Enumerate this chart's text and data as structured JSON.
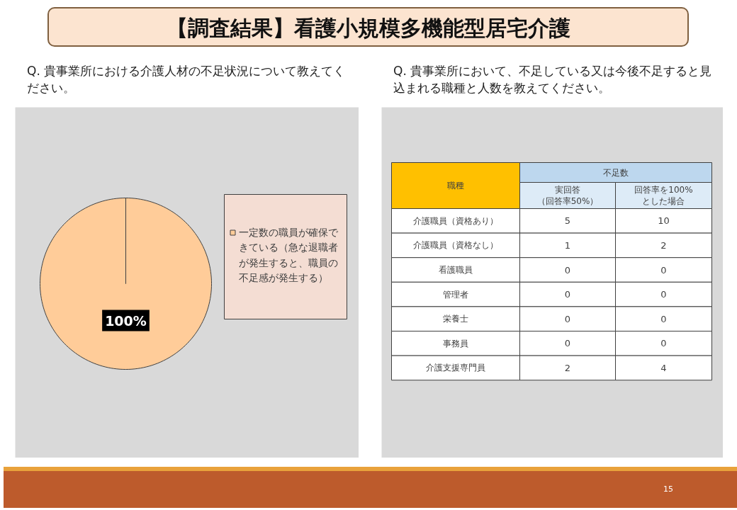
{
  "chart_data": [
    {
      "type": "pie",
      "title": "【調査結果】看護小規模多機能型居宅介護",
      "subtitle": "Q. 貴事業所における介護人材の不足状況について教えてください。",
      "categories": [
        "一定数の職員が確保できている（急な退職者が発生すると、職員の不足感が発生する）"
      ],
      "values": [
        100
      ],
      "colors": [
        "#ffcc99"
      ],
      "value_labels": [
        "100%"
      ],
      "legend": "right"
    },
    {
      "type": "other",
      "subtitle": "Q. 貴事業所において、不足している又は今後不足すると見込まれる職種と人数を教えてください。",
      "categories": [
        "介護職員（資格あり）",
        "介護職員（資格なし）",
        "看護職員",
        "管理者",
        "栄養士",
        "事務員",
        "介護支援専門員"
      ],
      "series": [
        {
          "name": "実回答（回答率50%）",
          "values": [
            5,
            1,
            0,
            0,
            0,
            0,
            2
          ]
        },
        {
          "name": "回答率を100%とした場合",
          "values": [
            10,
            2,
            0,
            0,
            0,
            0,
            4
          ]
        }
      ],
      "annotations": [
        "職種",
        "不足数",
        "15"
      ],
      "data_labels": true
    }
  ]
}
